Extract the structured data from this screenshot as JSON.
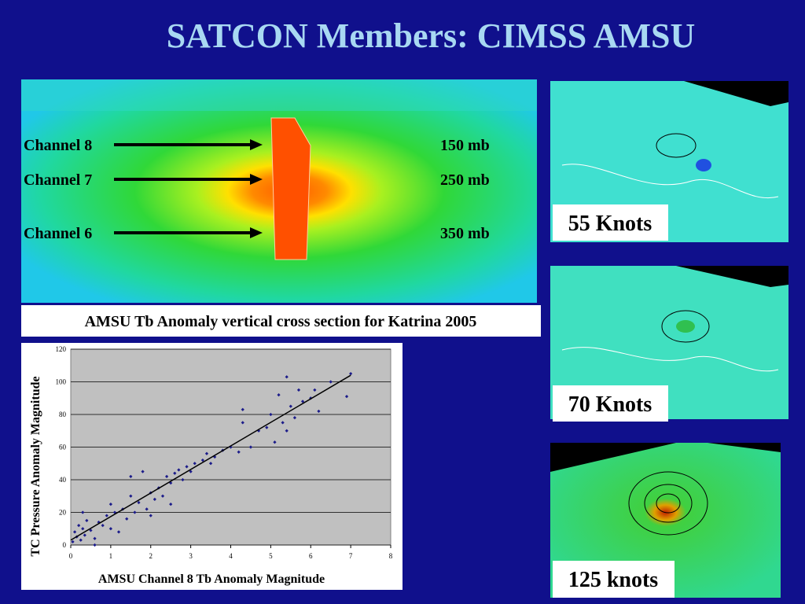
{
  "title": "SATCON Members:  CIMSS AMSU",
  "cross_section": {
    "labels": [
      {
        "channel": "Channel 8",
        "level": "150 mb"
      },
      {
        "channel": "Channel 7",
        "level": "250 mb"
      },
      {
        "channel": "Channel 6",
        "level": "350 mb"
      }
    ],
    "caption": "AMSU Tb Anomaly vertical cross section for Katrina 2005"
  },
  "chart_data": {
    "type": "scatter",
    "x_label": "AMSU Channel 8 Tb Anomaly Magnitude",
    "y_label": "TC Pressure Anomaly Magnitude",
    "color": "#1c1c8a",
    "xlim": [
      0,
      8
    ],
    "xticks": [
      0,
      1,
      2,
      3,
      4,
      5,
      6,
      7,
      8
    ],
    "ylim": [
      0,
      120
    ],
    "yticks": [
      0,
      20,
      40,
      60,
      80,
      100,
      120
    ],
    "grid": true,
    "x": [
      0.05,
      0.1,
      0.15,
      0.2,
      0.25,
      0.3,
      0.35,
      0.4,
      0.5,
      0.6,
      0.7,
      0.8,
      0.9,
      1.0,
      1.1,
      1.2,
      1.3,
      1.4,
      1.5,
      1.6,
      1.7,
      1.8,
      1.9,
      2.0,
      2.1,
      2.2,
      2.3,
      2.4,
      2.5,
      2.6,
      2.7,
      2.8,
      2.9,
      3.0,
      3.1,
      3.3,
      3.4,
      3.5,
      3.6,
      3.8,
      4.0,
      4.2,
      4.3,
      4.5,
      4.7,
      4.9,
      5.0,
      5.1,
      5.2,
      5.3,
      5.4,
      5.5,
      5.6,
      5.7,
      5.8,
      6.0,
      6.2,
      6.5,
      6.9,
      7.0,
      0.3,
      0.6,
      1.0,
      1.5,
      2.0,
      2.5,
      4.3,
      5.4,
      6.1
    ],
    "values": [
      2,
      8,
      5,
      12,
      3,
      10,
      6,
      15,
      9,
      4,
      14,
      12,
      18,
      10,
      20,
      8,
      22,
      16,
      30,
      20,
      26,
      45,
      22,
      32,
      28,
      35,
      30,
      42,
      38,
      44,
      46,
      40,
      48,
      45,
      50,
      52,
      56,
      50,
      54,
      58,
      60,
      57,
      83,
      60,
      70,
      72,
      80,
      63,
      92,
      75,
      103,
      85,
      78,
      95,
      88,
      90,
      82,
      100,
      91,
      105,
      20,
      0,
      25,
      42,
      18,
      25,
      75,
      70,
      95
    ],
    "trendline": {
      "x": [
        0,
        7
      ],
      "y": [
        3,
        104
      ],
      "color": "#000000"
    }
  },
  "maps": [
    {
      "label": "55 Knots"
    },
    {
      "label": "70 Knots"
    },
    {
      "label": "125 knots"
    }
  ]
}
